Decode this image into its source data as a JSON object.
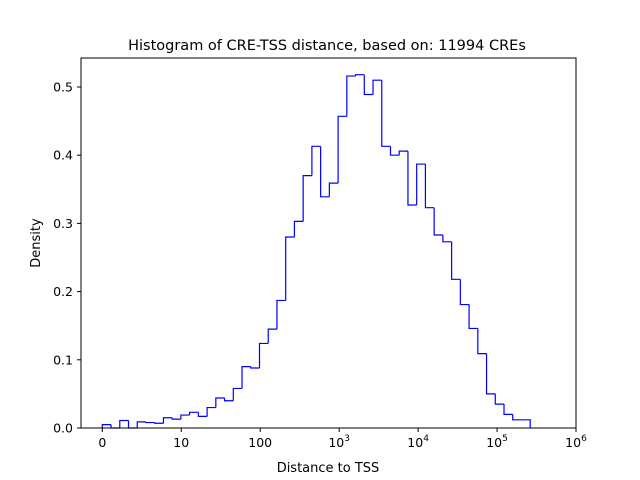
{
  "chart_data": {
    "type": "histogram",
    "title": "Histogram of CRE-TSS distance, based on: 11994 CREs",
    "xlabel": "Distance to TSS",
    "ylabel": "Density",
    "x_scale": "log10 (distance), with 0 at origin",
    "x_ticks": [
      {
        "value": 0,
        "base": "0",
        "exp": ""
      },
      {
        "value": 1,
        "base": "10",
        "exp": ""
      },
      {
        "value": 2,
        "base": "100",
        "exp": ""
      },
      {
        "value": 3,
        "base": "10",
        "exp": "3"
      },
      {
        "value": 4,
        "base": "10",
        "exp": "4"
      },
      {
        "value": 5,
        "base": "10",
        "exp": "5"
      },
      {
        "value": 6,
        "base": "10",
        "exp": "6"
      }
    ],
    "xlim": [
      -0.27,
      6
    ],
    "ylim": [
      0,
      0.5425
    ],
    "y_ticks": [
      "0.0",
      "0.1",
      "0.2",
      "0.3",
      "0.4",
      "0.5"
    ],
    "y_tick_values": [
      0,
      0.1,
      0.2,
      0.3,
      0.4,
      0.5
    ],
    "bin_range": [
      0,
      5.42
    ],
    "histtype": "step",
    "color": "#0000ff",
    "grid": false,
    "densities": [
      0.005,
      0.0,
      0.011,
      0.0,
      0.009,
      0.008,
      0.007,
      0.015,
      0.013,
      0.019,
      0.023,
      0.017,
      0.03,
      0.044,
      0.04,
      0.058,
      0.09,
      0.088,
      0.124,
      0.145,
      0.187,
      0.28,
      0.303,
      0.37,
      0.413,
      0.339,
      0.359,
      0.457,
      0.516,
      0.518,
      0.489,
      0.51,
      0.413,
      0.4,
      0.406,
      0.327,
      0.387,
      0.323,
      0.283,
      0.273,
      0.218,
      0.181,
      0.146,
      0.109,
      0.05,
      0.035,
      0.02,
      0.012,
      0.012
    ]
  }
}
